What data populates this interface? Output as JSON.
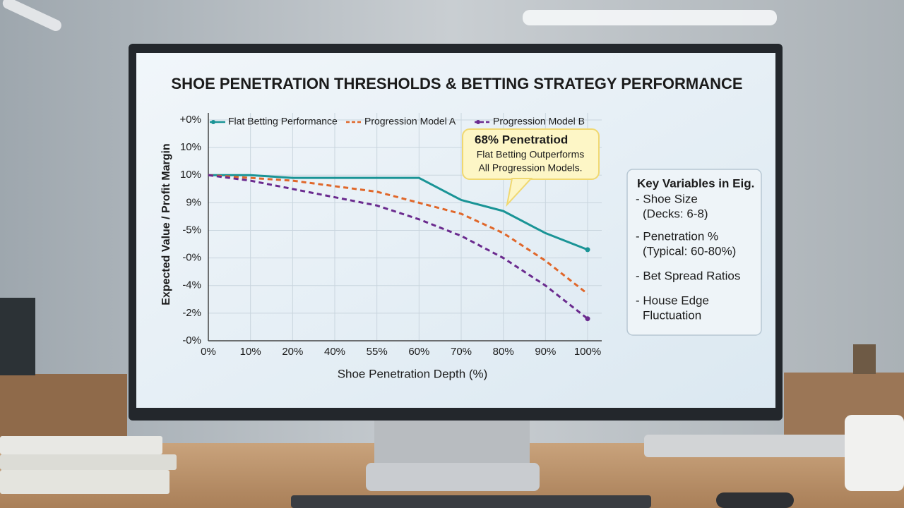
{
  "chart_data": {
    "type": "line",
    "title": "SHOE PENETRATION THRESHOLDS & BETTING STRATEGY PERFORMANCE",
    "x_label": "Shoe Penetration Depth (%)",
    "y_label": "Expected Value / Profit Margin",
    "categories": [
      "0%",
      "10%",
      "20%",
      "40%",
      "55%",
      "60%",
      "70%",
      "80%",
      "90%",
      "100%"
    ],
    "ylim": [
      0,
      8
    ],
    "yticks": [
      {
        "value": 0,
        "label": "-0%"
      },
      {
        "value": 1,
        "label": "-2%"
      },
      {
        "value": 2,
        "label": "-4%"
      },
      {
        "value": 3,
        "label": "-0%"
      },
      {
        "value": 4,
        "label": "-5%"
      },
      {
        "value": 5,
        "label": "9%"
      },
      {
        "value": 6,
        "label": "10%"
      },
      {
        "value": 7,
        "label": "10%"
      },
      {
        "value": 8,
        "label": "+0%"
      }
    ],
    "grid": true,
    "series": [
      {
        "name": "Flat Betting Performance",
        "color": "#1a9496",
        "dash": false,
        "marker": true,
        "values": [
          6.0,
          6.0,
          5.9,
          5.9,
          5.9,
          5.9,
          5.1,
          4.7,
          3.9,
          3.3
        ]
      },
      {
        "name": "Progression Model A",
        "color": "#e0672a",
        "dash": true,
        "marker": false,
        "values": [
          6.0,
          5.9,
          5.8,
          5.6,
          5.4,
          5.0,
          4.6,
          3.9,
          2.9,
          1.7
        ]
      },
      {
        "name": "Progression Model B",
        "color": "#6a2a8e",
        "dash": true,
        "marker": true,
        "values": [
          6.0,
          5.8,
          5.5,
          5.2,
          4.9,
          4.4,
          3.8,
          3.0,
          2.0,
          0.8
        ]
      }
    ],
    "annotation": {
      "title": "68% Penetratiod",
      "lines": [
        "Flat Betting Outperforms",
        "All Progression Models."
      ]
    },
    "key_box": {
      "title": "Key Variables in Eig.",
      "items": [
        "- Shoe Size",
        "(Decks: 6-8)",
        "- Penetration %",
        "(Typical: 60-80%)",
        "- Bet Spread Ratios",
        "- House Edge",
        "Fluctuation"
      ]
    }
  }
}
